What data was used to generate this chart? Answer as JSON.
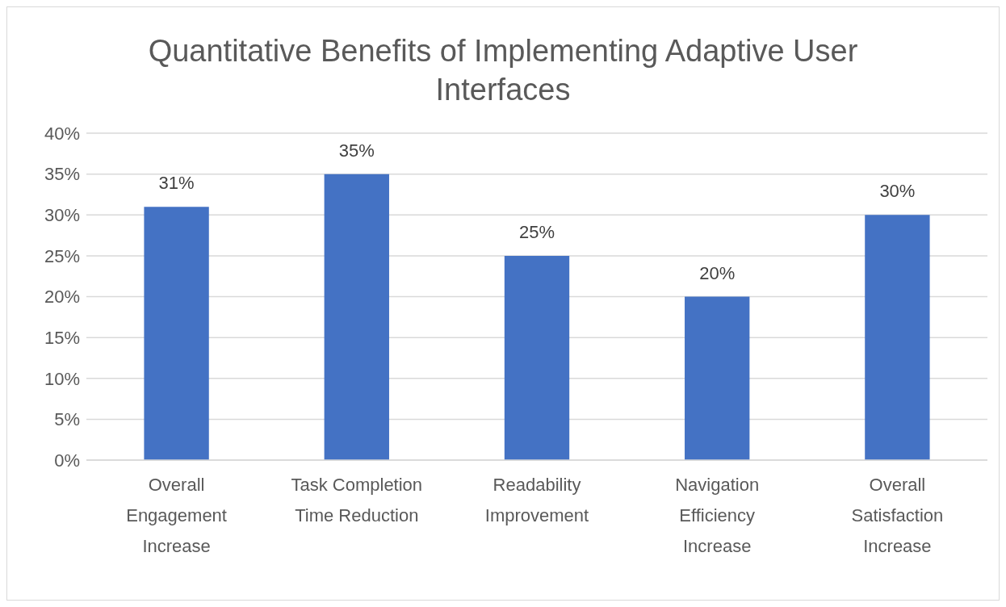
{
  "chart_data": {
    "type": "bar",
    "title": "Quantitative Benefits of Implementing Adaptive User Interfaces",
    "categories": [
      "Overall Engagement Increase",
      "Task Completion Time Reduction",
      "Readability Improvement",
      "Navigation Efficiency Increase",
      "Overall Satisfaction Increase"
    ],
    "values": [
      31,
      35,
      25,
      20,
      30
    ],
    "value_labels": [
      "31%",
      "35%",
      "25%",
      "20%",
      "30%"
    ],
    "color": "#4472c4",
    "ylim": [
      0,
      40
    ],
    "yticks": [
      {
        "value": 0,
        "label": "0%"
      },
      {
        "value": 5,
        "label": "5%"
      },
      {
        "value": 10,
        "label": "10%"
      },
      {
        "value": 15,
        "label": "15%"
      },
      {
        "value": 20,
        "label": "20%"
      },
      {
        "value": 25,
        "label": "25%"
      },
      {
        "value": 30,
        "label": "30%"
      },
      {
        "value": 35,
        "label": "35%"
      },
      {
        "value": 40,
        "label": "40%"
      }
    ],
    "grid": "y"
  }
}
